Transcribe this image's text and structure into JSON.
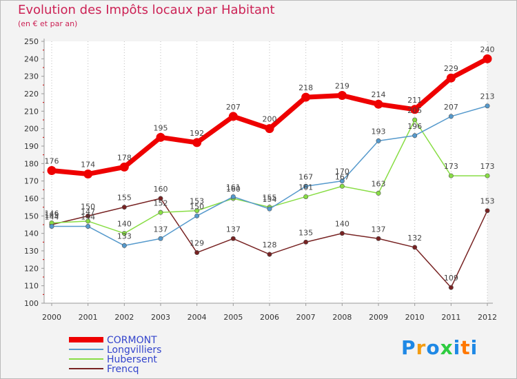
{
  "header": {
    "title": "Evolution des Impôts locaux par Habitant",
    "subtitle": "(en € et par an)"
  },
  "logo": {
    "text": "Proxiti",
    "letters": [
      "P",
      "r",
      "o",
      "x",
      "i",
      "t",
      "i"
    ],
    "colors": [
      "#1e88e5",
      "#f39c12",
      "#1e88e5",
      "#2ecc40",
      "#1e88e5",
      "#ff7700",
      "#1e88e5"
    ]
  },
  "chart_data": {
    "type": "line",
    "title": "Evolution des Impôts locaux par Habitant",
    "subtitle": "(en € et par an)",
    "x": [
      "2000",
      "2001",
      "2002",
      "2003",
      "2004",
      "2005",
      "2006",
      "2007",
      "2008",
      "2009",
      "2010",
      "2011",
      "2012"
    ],
    "ylim": [
      100,
      250
    ],
    "yticks": [
      100,
      110,
      120,
      130,
      140,
      150,
      160,
      170,
      180,
      190,
      200,
      210,
      220,
      230,
      240,
      250
    ],
    "grid": "vertical dotted",
    "legend_position": "bottom-left",
    "series": [
      {
        "name": "CORMONT",
        "color": "#ee0000",
        "values": [
          176,
          174,
          178,
          195,
          192,
          207,
          200,
          218,
          219,
          214,
          211,
          229,
          240
        ]
      },
      {
        "name": "Longvilliers",
        "color": "#5599cc",
        "values": [
          144,
          144,
          133,
          137,
          150,
          161,
          154,
          167,
          170,
          193,
          196,
          207,
          213
        ]
      },
      {
        "name": "Hubersent",
        "color": "#88dd44",
        "values": [
          146,
          147,
          140,
          152,
          153,
          160,
          155,
          161,
          167,
          163,
          205,
          173,
          173
        ]
      },
      {
        "name": "Frencq",
        "color": "#772222",
        "values": [
          145,
          150,
          155,
          160,
          129,
          137,
          128,
          135,
          140,
          137,
          132,
          109,
          153
        ]
      }
    ]
  }
}
